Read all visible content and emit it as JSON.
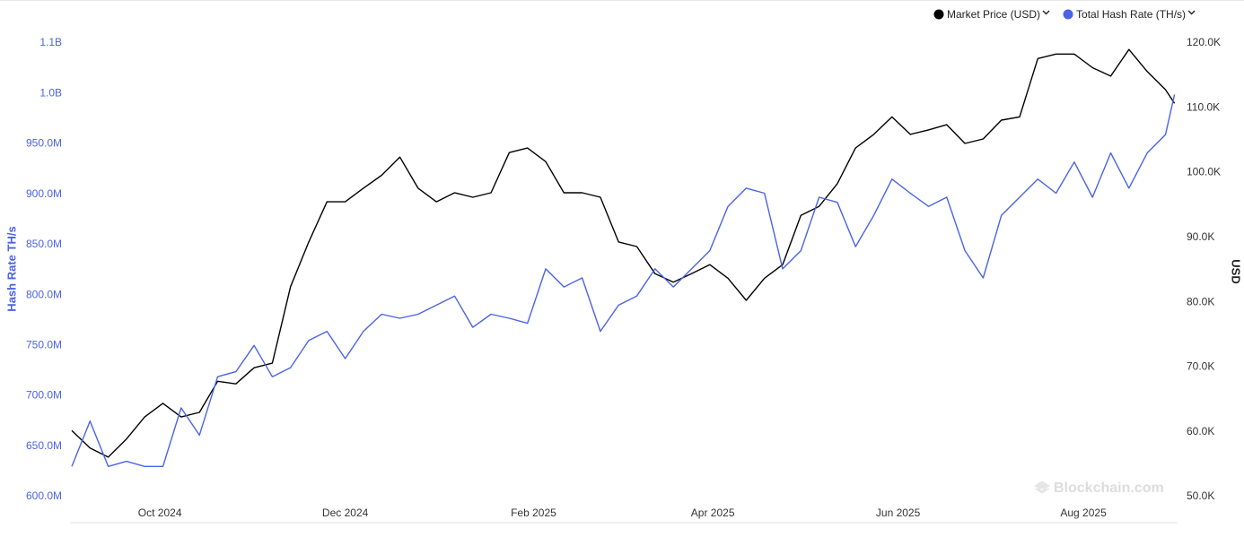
{
  "chart_data": {
    "type": "line",
    "y_label": "Hash Rate TH/s",
    "y2_label": "USD",
    "watermark": "Blockchain.com",
    "legend": "top-right",
    "x": [
      0,
      6,
      12,
      18,
      24,
      30,
      36,
      42,
      48,
      54,
      60,
      66,
      72,
      78,
      84,
      90,
      96,
      102,
      108,
      114,
      120,
      126,
      132,
      138,
      144,
      150,
      156,
      162,
      168,
      174,
      180,
      186,
      192,
      198,
      204,
      210,
      216,
      222,
      228,
      234,
      240,
      246,
      252,
      258,
      264,
      270,
      276,
      282,
      288,
      294,
      300,
      306,
      312,
      318,
      324,
      330,
      336,
      342,
      348,
      354,
      360,
      363
    ],
    "xlim": [
      0,
      364
    ],
    "xticks": [
      {
        "value": 29,
        "label": "Oct 2024"
      },
      {
        "value": 90,
        "label": "Dec 2024"
      },
      {
        "value": 152,
        "label": "Feb 2025"
      },
      {
        "value": 211,
        "label": "Apr 2025"
      },
      {
        "value": 272,
        "label": "Jun 2025"
      },
      {
        "value": 333,
        "label": "Aug 2025"
      }
    ],
    "ylim": [
      600000000,
      1050000000
    ],
    "yticks": [
      {
        "value": 600000000,
        "label": "600.0M"
      },
      {
        "value": 650000000,
        "label": "650.0M"
      },
      {
        "value": 700000000,
        "label": "700.0M"
      },
      {
        "value": 750000000,
        "label": "750.0M"
      },
      {
        "value": 800000000,
        "label": "800.0M"
      },
      {
        "value": 850000000,
        "label": "850.0M"
      },
      {
        "value": 900000000,
        "label": "900.0M"
      },
      {
        "value": 950000000,
        "label": "950.0M"
      },
      {
        "value": 1000000000,
        "label": "1.0B"
      },
      {
        "value": 1050000000,
        "label": "1.1B"
      }
    ],
    "y2lim": [
      50000,
      120000
    ],
    "y2ticks": [
      {
        "value": 50000,
        "label": "50.0K"
      },
      {
        "value": 60000,
        "label": "60.0K"
      },
      {
        "value": 70000,
        "label": "70.0K"
      },
      {
        "value": 80000,
        "label": "80.0K"
      },
      {
        "value": 90000,
        "label": "90.0K"
      },
      {
        "value": 100000,
        "label": "100.0K"
      },
      {
        "value": 110000,
        "label": "110.0K"
      },
      {
        "value": 120000,
        "label": "120.0K"
      }
    ],
    "series": [
      {
        "name": "Market Price (USD)",
        "color": "#000000",
        "axis": "y2",
        "values": [
          60200,
          57500,
          56100,
          58900,
          62300,
          64400,
          62300,
          63000,
          67800,
          67400,
          69900,
          70600,
          82400,
          89300,
          95500,
          95500,
          97600,
          99600,
          102400,
          97600,
          95500,
          96900,
          96200,
          96900,
          103100,
          103800,
          101700,
          96900,
          96900,
          96200,
          89300,
          88600,
          84400,
          83100,
          84400,
          85800,
          83700,
          80300,
          83700,
          85800,
          93400,
          94800,
          98300,
          103800,
          105900,
          108600,
          105900,
          106600,
          107400,
          104500,
          105200,
          108100,
          108600,
          117600,
          118300,
          118300,
          116200,
          114900,
          119000,
          115600,
          112800,
          110700
        ]
      },
      {
        "name": "Total Hash Rate (TH/s)",
        "color": "#4a63e7",
        "values": [
          630000000,
          675000000,
          630000000,
          635000000,
          630000000,
          630000000,
          688000000,
          661000000,
          719000000,
          724000000,
          750000000,
          719000000,
          728000000,
          755000000,
          764000000,
          737000000,
          764000000,
          781000000,
          777000000,
          781000000,
          790000000,
          799000000,
          768000000,
          781000000,
          777000000,
          772000000,
          826000000,
          808000000,
          817000000,
          764000000,
          790000000,
          799000000,
          826000000,
          808000000,
          826000000,
          844000000,
          888000000,
          906000000,
          901000000,
          826000000,
          844000000,
          897000000,
          892000000,
          848000000,
          879000000,
          915000000,
          901000000,
          888000000,
          897000000,
          844000000,
          817000000,
          879000000,
          897000000,
          915000000,
          901000000,
          932000000,
          897000000,
          941000000,
          906000000,
          941000000,
          959000000,
          999000000
        ]
      }
    ]
  }
}
